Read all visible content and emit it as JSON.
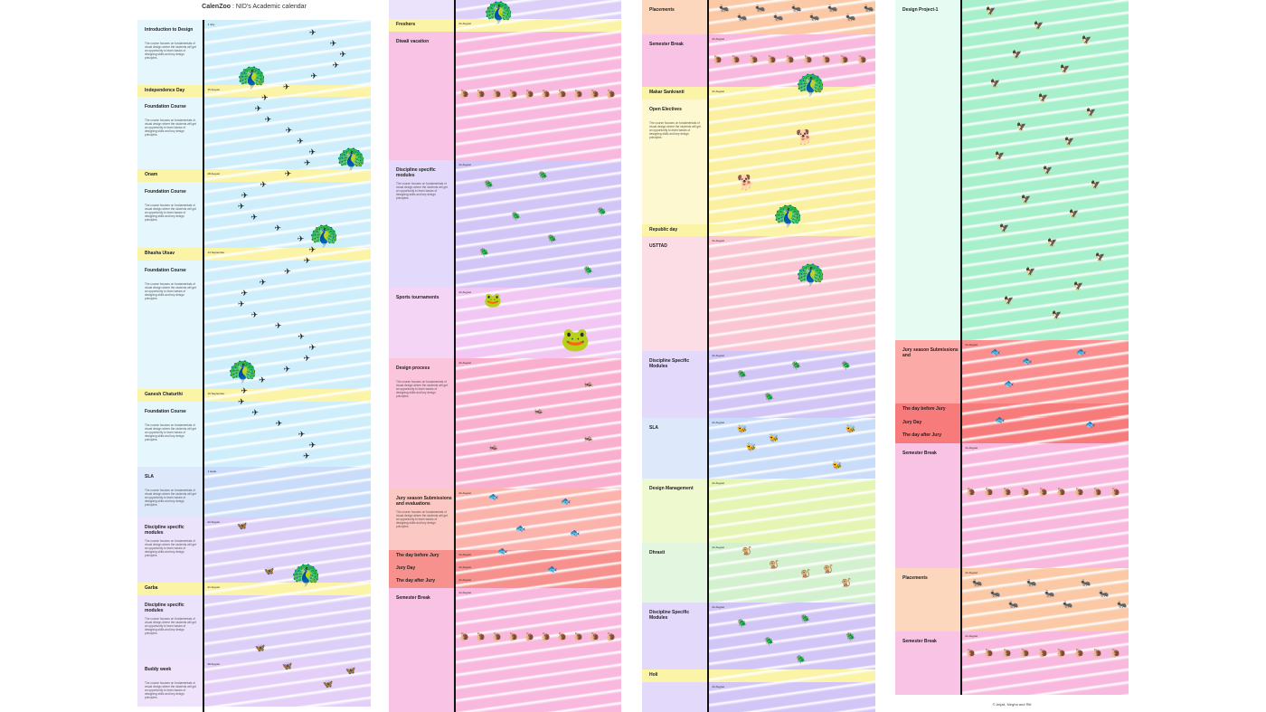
{
  "header": {
    "brand": "CalenZoo",
    "subtitle": ": NID's Academic calendar"
  },
  "footer": "© Anjali, Megha and Riti",
  "desc_short": "The course focuses on fundamentals of visual design where the students will get an opportunity to learn basics of designing skills and key design principles.",
  "columns": [
    {
      "rows": [
        {
          "label": "Introduction to Design",
          "date": "1 July",
          "h": 72,
          "bg": "#cfeefc",
          "lbg": "#e6f6fd",
          "desc": true
        },
        {
          "label": "Independence Day",
          "date": "15 August",
          "h": 13,
          "bg": "#fbf3a6",
          "lbg": "#fbf3a6",
          "holiday": true
        },
        {
          "label": "Foundation Course",
          "date": "",
          "h": 80,
          "bg": "#cfeefc",
          "lbg": "#e6f6fd",
          "desc": true
        },
        {
          "label": "Onam",
          "date": "28 August",
          "h": 14,
          "bg": "#fbf3a6",
          "lbg": "#fbf3a6",
          "holiday": true
        },
        {
          "label": "Foundation Course",
          "date": "",
          "h": 73,
          "bg": "#cfeefc",
          "lbg": "#e6f6fd",
          "desc": true
        },
        {
          "label": "Bhasha Utsav",
          "date": "14 September",
          "h": 14,
          "bg": "#fbf3a6",
          "lbg": "#fbf3a6",
          "holiday": true
        },
        {
          "label": "Foundation Course",
          "date": "",
          "h": 142,
          "bg": "#cfeefc",
          "lbg": "#e6f6fd",
          "desc": true
        },
        {
          "label": "Ganesh Chaturthi",
          "date": "19 September",
          "h": 14,
          "bg": "#fbf3a6",
          "lbg": "#fbf3a6",
          "holiday": true
        },
        {
          "label": "Foundation Course",
          "date": "",
          "h": 72,
          "bg": "#cfeefc",
          "lbg": "#e6f6fd",
          "desc": true
        },
        {
          "label": "SLA",
          "date": "1 week",
          "h": 56,
          "bg": "#c9dcf9",
          "lbg": "#dde9fb",
          "desc": true
        },
        {
          "label": "Discipline specific modules",
          "date": "22 August",
          "h": 72,
          "bg": "#ddd0f8",
          "lbg": "#ebe3fb",
          "desc": true
        },
        {
          "label": "Garba",
          "date": "21 August",
          "h": 14,
          "bg": "#fbf3a6",
          "lbg": "#fbf3a6",
          "holiday": true
        },
        {
          "label": "Discipline specific modules",
          "date": "",
          "h": 71,
          "bg": "#ddd0f8",
          "lbg": "#ebe3fb",
          "desc": true
        },
        {
          "label": "Buddy week",
          "date": "28 August",
          "h": 52,
          "bg": "#e3cff7",
          "lbg": "#efe2fb",
          "desc": true
        }
      ]
    },
    {
      "rows": [
        {
          "label": "",
          "date": "",
          "h": 21,
          "bg": "#ddd0f8",
          "lbg": "#ebe3fb"
        },
        {
          "label": "Freshers",
          "date": "21 August",
          "h": 14,
          "bg": "#fbf3a6",
          "lbg": "#fbf3a6",
          "holiday": true
        },
        {
          "label": "Diwali vacation",
          "date": "",
          "h": 142,
          "bg": "#f9b9de",
          "lbg": "#f8c3e4"
        },
        {
          "label": "Discipline specific modules",
          "date": "21 August",
          "h": 141,
          "bg": "#d2c6f7",
          "lbg": "#e3dafb",
          "desc": true
        },
        {
          "label": "Sports tournaments",
          "date": "21 August",
          "h": 78,
          "bg": "#f2c7f4",
          "lbg": "#f5d5f6"
        },
        {
          "label": "Design process",
          "date": "21 August",
          "h": 144,
          "bg": "#f9b0cf",
          "lbg": "#fbc5dc",
          "desc": true
        },
        {
          "label": "Jury season Submissions and evaluations",
          "date": "21 August",
          "h": 68,
          "bg": "#fbb3ac",
          "lbg": "#fcc8c3",
          "desc": true
        },
        {
          "label": "The day before Jury",
          "date": "21 August",
          "h": 14,
          "bg": "#f7918d",
          "lbg": "#f7918d",
          "holiday": true
        },
        {
          "label": "Jury Day",
          "date": "21 August",
          "h": 14,
          "bg": "#f7918d",
          "lbg": "#f7918d",
          "holiday": true
        },
        {
          "label": "The day after Jury",
          "date": "21 August",
          "h": 14,
          "bg": "#f7918d",
          "lbg": "#f7918d",
          "holiday": true
        },
        {
          "label": "Semester Break",
          "date": "21 August",
          "h": 137,
          "bg": "#f9b9de",
          "lbg": "#f8c3e4"
        }
      ]
    },
    {
      "rows": [
        {
          "label": "Placements",
          "date": "",
          "h": 38,
          "bg": "#fbc9a6",
          "lbg": "#fcd7bd"
        },
        {
          "label": "Semester Break",
          "date": "21 August",
          "h": 58,
          "bg": "#f9b9de",
          "lbg": "#f8c3e4"
        },
        {
          "label": "Makar Sankranti",
          "date": "21 August",
          "h": 14,
          "bg": "#fbf3a6",
          "lbg": "#fbf3a6",
          "holiday": true
        },
        {
          "label": "Open Electives",
          "date": "",
          "h": 138,
          "bg": "#fbf0a0",
          "lbg": "#fdf8d0",
          "desc": true
        },
        {
          "label": "Republic day",
          "date": "",
          "h": 13,
          "bg": "#fbf3a6",
          "lbg": "#fbf3a6",
          "holiday": true
        },
        {
          "label": "USTTAD",
          "date": "21 August",
          "h": 127,
          "bg": "#fac6d4",
          "lbg": "#fcdde5"
        },
        {
          "label": "Discipline Specific Modules",
          "date": "21 August",
          "h": 74,
          "bg": "#d2c6f7",
          "lbg": "#e3dafb"
        },
        {
          "label": "SLA",
          "date": "21 August",
          "h": 67,
          "bg": "#c9dcf9",
          "lbg": "#dde9fb"
        },
        {
          "label": "Design Management",
          "date": "21 August",
          "h": 71,
          "bg": "#e5f5b4",
          "lbg": "#eef9cf"
        },
        {
          "label": "Dhrasti",
          "date": "21 August",
          "h": 66,
          "bg": "#d4f1cf",
          "lbg": "#e3f6e0"
        },
        {
          "label": "Discipline Specific Modules",
          "date": "21 August",
          "h": 74,
          "bg": "#d2c6f7",
          "lbg": "#e3dafb"
        },
        {
          "label": "Holi",
          "date": "",
          "h": 14,
          "bg": "#fbf3a6",
          "lbg": "#fbf3a6",
          "holiday": true
        },
        {
          "label": "",
          "date": "21 August",
          "h": 33,
          "bg": "#d2c6f7",
          "lbg": "#e3dafb"
        }
      ]
    },
    {
      "rows": [
        {
          "label": "Design Project-1",
          "date": "",
          "h": 376,
          "bg": "#a8f0cc",
          "lbg": "#e6fbf1"
        },
        {
          "label": "Jury season Submissions and",
          "date": "21 August",
          "h": 70,
          "bg": "#fb8f8f",
          "lbg": "#fbaaa7"
        },
        {
          "label": "The day before Jury",
          "date": "",
          "h": 15,
          "bg": "#f87b7b",
          "lbg": "#f87b7b",
          "holiday": true
        },
        {
          "label": "Jury Day",
          "date": "",
          "h": 14,
          "bg": "#f87b7b",
          "lbg": "#f87b7b",
          "holiday": true
        },
        {
          "label": "The day after Jury",
          "date": "",
          "h": 15,
          "bg": "#f87b7b",
          "lbg": "#f87b7b",
          "holiday": true
        },
        {
          "label": "Semester Break",
          "date": "21 August",
          "h": 138,
          "bg": "#f9b9de",
          "lbg": "#f8c3e4"
        },
        {
          "label": "Placements",
          "date": "21 August",
          "h": 70,
          "bg": "#fbc9a6",
          "lbg": "#fcd7bd"
        },
        {
          "label": "Semester Break",
          "date": "21 August",
          "h": 70,
          "bg": "#f9b9de",
          "lbg": "#f8c3e4"
        }
      ]
    }
  ]
}
